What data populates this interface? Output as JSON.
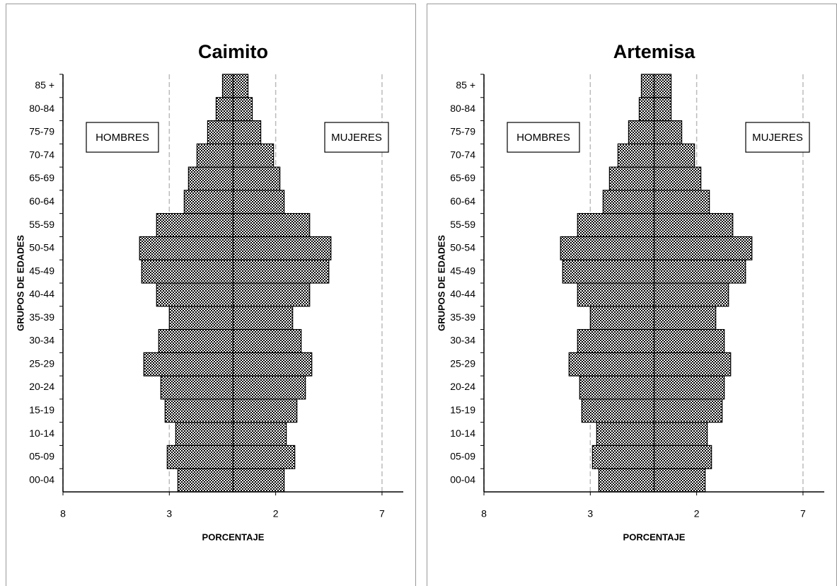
{
  "chart_data": [
    {
      "type": "pyramid",
      "title": "Caimito",
      "xlabel": "PORCENTAJE",
      "ylabel": "GRUPOS DE EDADES",
      "categories": [
        "00-04",
        "05-09",
        "10-14",
        "15-19",
        "20-24",
        "25-29",
        "30-34",
        "35-39",
        "40-44",
        "45-49",
        "50-54",
        "55-59",
        "60-64",
        "65-69",
        "70-74",
        "75-79",
        "80-84",
        "85 +"
      ],
      "series": [
        {
          "name": "HOMBRES",
          "color": "#000000",
          "values": [
            -2.6,
            -3.1,
            -2.7,
            -3.2,
            -3.4,
            -4.2,
            -3.5,
            -3.0,
            -3.6,
            -4.3,
            -4.4,
            -3.6,
            -2.3,
            -2.1,
            -1.7,
            -1.2,
            -0.8,
            -0.5
          ]
        },
        {
          "name": "MUJERES",
          "color": "#000000",
          "values": [
            2.4,
            2.9,
            2.5,
            3.0,
            3.4,
            3.7,
            3.2,
            2.8,
            3.6,
            4.5,
            4.6,
            3.6,
            2.4,
            2.2,
            1.9,
            1.3,
            0.9,
            0.7
          ]
        }
      ],
      "xlim": [
        -8,
        8
      ],
      "xticks": [
        {
          "value": -8,
          "label": "8"
        },
        {
          "value": -3,
          "label": "3"
        },
        2,
        7
      ],
      "grid": true
    },
    {
      "type": "pyramid",
      "title": "Artemisa",
      "xlabel": "PORCENTAJE",
      "ylabel": "GRUPOS DE EDADES",
      "categories": [
        "00-04",
        "05-09",
        "10-14",
        "15-19",
        "20-24",
        "25-29",
        "30-34",
        "35-39",
        "40-44",
        "45-49",
        "50-54",
        "55-59",
        "60-64",
        "65-69",
        "70-74",
        "75-79",
        "80-84",
        "85 +"
      ],
      "series": [
        {
          "name": "HOMBRES",
          "color": "#000000",
          "values": [
            -2.6,
            -2.9,
            -2.7,
            -3.4,
            -3.5,
            -4.0,
            -3.6,
            -3.0,
            -3.6,
            -4.3,
            -4.4,
            -3.6,
            -2.4,
            -2.1,
            -1.7,
            -1.2,
            -0.7,
            -0.6
          ]
        },
        {
          "name": "MUJERES",
          "color": "#000000",
          "values": [
            2.4,
            2.7,
            2.5,
            3.2,
            3.3,
            3.6,
            3.3,
            2.9,
            3.5,
            4.3,
            4.6,
            3.7,
            2.6,
            2.2,
            1.9,
            1.3,
            0.8,
            0.8
          ]
        }
      ],
      "xlim": [
        -8,
        8
      ],
      "xticks": [
        {
          "value": -8,
          "label": "8"
        },
        {
          "value": -3,
          "label": "3"
        },
        2,
        7
      ],
      "grid": true
    }
  ]
}
